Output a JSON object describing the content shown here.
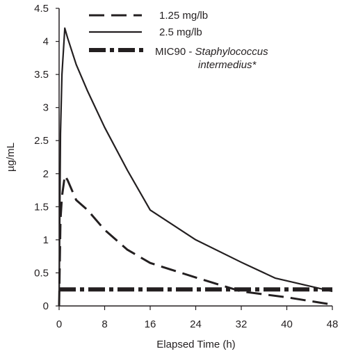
{
  "chart_data": {
    "type": "line",
    "xlabel": "Elapsed Time (h)",
    "ylabel": "µg/mL",
    "xlim": [
      0,
      48
    ],
    "ylim": [
      0,
      4.5
    ],
    "x_ticks": [
      "0",
      "8",
      "16",
      "24",
      "32",
      "40",
      "48"
    ],
    "y_ticks": [
      "0",
      "0.5",
      "1",
      "1.5",
      "2",
      "2.5",
      "3",
      "3.5",
      "4",
      "4.5"
    ],
    "grid": false,
    "legend_position": "top-right",
    "series": [
      {
        "name": "1.25 mg/lb",
        "style": "dashed",
        "x": [
          0,
          0.25,
          0.5,
          1,
          1.5,
          3,
          5,
          8,
          12,
          16,
          24,
          32,
          40,
          48
        ],
        "y": [
          0,
          1.3,
          1.65,
          1.97,
          1.9,
          1.6,
          1.45,
          1.15,
          0.85,
          0.65,
          0.43,
          0.22,
          0.13,
          0.02
        ]
      },
      {
        "name": "2.5 mg/lb",
        "style": "solid",
        "x": [
          0,
          0.25,
          0.5,
          1,
          1.5,
          3,
          5,
          8,
          12,
          16,
          24,
          32,
          38,
          48
        ],
        "y": [
          0,
          2.6,
          3.5,
          4.2,
          4.05,
          3.65,
          3.25,
          2.7,
          2.05,
          1.45,
          1.0,
          0.66,
          0.42,
          0.22
        ]
      },
      {
        "name_prefix": "MIC90 - ",
        "name_line1": "Staphylococcus",
        "name_line2": "intermedius*",
        "style": "dash-dot",
        "x": [
          0,
          48
        ],
        "y": [
          0.25,
          0.25
        ]
      }
    ]
  }
}
